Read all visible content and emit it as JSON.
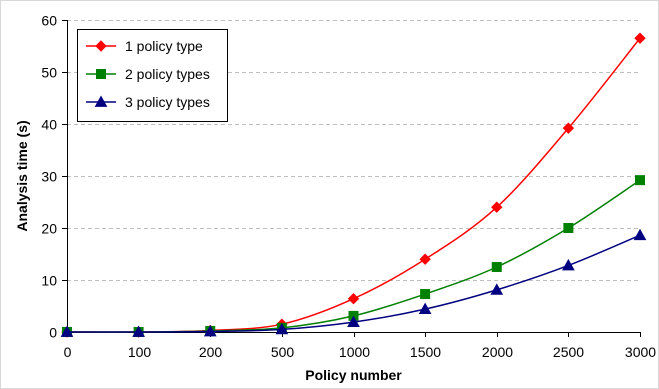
{
  "chart_data": {
    "type": "line",
    "title": "",
    "xlabel": "Policy number",
    "ylabel": "Analysis time (s)",
    "categories": [
      "0",
      "100",
      "200",
      "500",
      "1000",
      "1500",
      "2000",
      "2500",
      "3000"
    ],
    "ylim": [
      0,
      60
    ],
    "yticks": [
      "0",
      "10",
      "20",
      "30",
      "40",
      "50",
      "60"
    ],
    "grid": "horizontal dashed",
    "legend_position": "top-left",
    "series": [
      {
        "name": "1 policy type",
        "color": "#ff0000",
        "marker": "diamond",
        "values": [
          0,
          0,
          0.3,
          1.5,
          6.4,
          14.0,
          24.0,
          39.2,
          56.5
        ]
      },
      {
        "name": "2 policy types",
        "color": "#008000",
        "marker": "square",
        "values": [
          0,
          0,
          0.2,
          0.8,
          3.1,
          7.3,
          12.5,
          20.0,
          29.2
        ]
      },
      {
        "name": "3 policy types",
        "color": "#000080",
        "marker": "triangle",
        "values": [
          0,
          0,
          0.1,
          0.5,
          1.9,
          4.4,
          8.1,
          12.8,
          18.6
        ]
      }
    ]
  }
}
